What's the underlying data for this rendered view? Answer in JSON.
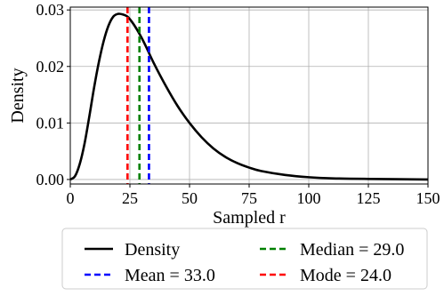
{
  "chart_data": {
    "type": "line",
    "xlabel": "Sampled r",
    "ylabel": "Density",
    "xlim": [
      0,
      150
    ],
    "ylim": [
      -0.0008,
      0.0305
    ],
    "x_ticks": [
      0,
      25,
      50,
      75,
      100,
      125,
      150
    ],
    "x_tick_labels": [
      "0",
      "25",
      "50",
      "75",
      "100",
      "125",
      "150"
    ],
    "y_ticks": [
      0.0,
      0.01,
      0.02,
      0.03
    ],
    "y_tick_labels": [
      "0.00",
      "0.01",
      "0.02",
      "0.03"
    ],
    "grid": true,
    "legend_placement": "below plot, two columns",
    "series": [
      {
        "name": "Density",
        "color": "#000000",
        "style": "solid",
        "x": [
          0,
          2,
          4,
          6,
          8,
          10,
          12,
          14,
          16,
          18,
          20,
          22,
          24,
          26,
          28,
          30,
          32,
          35,
          40,
          45,
          50,
          55,
          60,
          65,
          70,
          75,
          80,
          90,
          100,
          110,
          125,
          150
        ],
        "y": [
          0.0,
          0.0006,
          0.0028,
          0.0064,
          0.0112,
          0.0163,
          0.0208,
          0.0245,
          0.0272,
          0.0288,
          0.0293,
          0.0292,
          0.0288,
          0.0278,
          0.0265,
          0.025,
          0.0233,
          0.0206,
          0.0166,
          0.013,
          0.01,
          0.0075,
          0.0055,
          0.004,
          0.0029,
          0.0021,
          0.0015,
          0.0008,
          0.0004,
          0.0002,
          0.0001,
          0.0
        ]
      }
    ],
    "reference_lines": [
      {
        "name": "Mean = 33.0",
        "x": 33.0,
        "color": "#0000ff",
        "style": "dashed"
      },
      {
        "name": "Median = 29.0",
        "x": 29.0,
        "color": "#008000",
        "style": "dashed"
      },
      {
        "name": "Mode = 24.0",
        "x": 24.0,
        "color": "#ff0000",
        "style": "dashed"
      }
    ],
    "legend": [
      {
        "label": "Density",
        "color": "#000000",
        "style": "solid"
      },
      {
        "label": "Median = 29.0",
        "color": "#008000",
        "style": "dashed"
      },
      {
        "label": "Mean = 33.0",
        "color": "#0000ff",
        "style": "dashed"
      },
      {
        "label": "Mode = 24.0",
        "color": "#ff0000",
        "style": "dashed"
      }
    ]
  }
}
